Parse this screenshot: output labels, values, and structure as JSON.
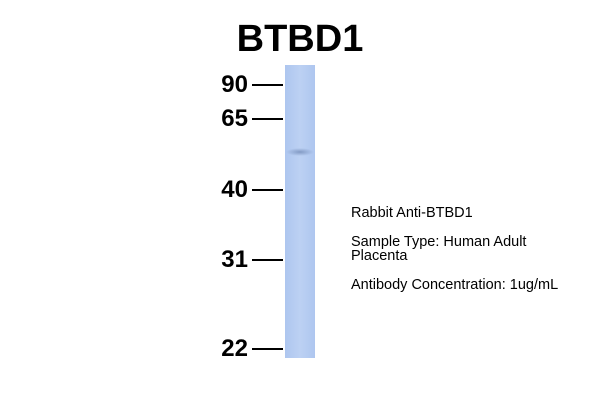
{
  "title": "BTBD1",
  "markers": [
    90,
    65,
    40,
    31,
    22
  ],
  "annotations": [
    "Rabbit Anti-BTBD1",
    "Sample Type: Human Adult Placenta",
    "Antibody Concentration: 1ug/mL"
  ]
}
